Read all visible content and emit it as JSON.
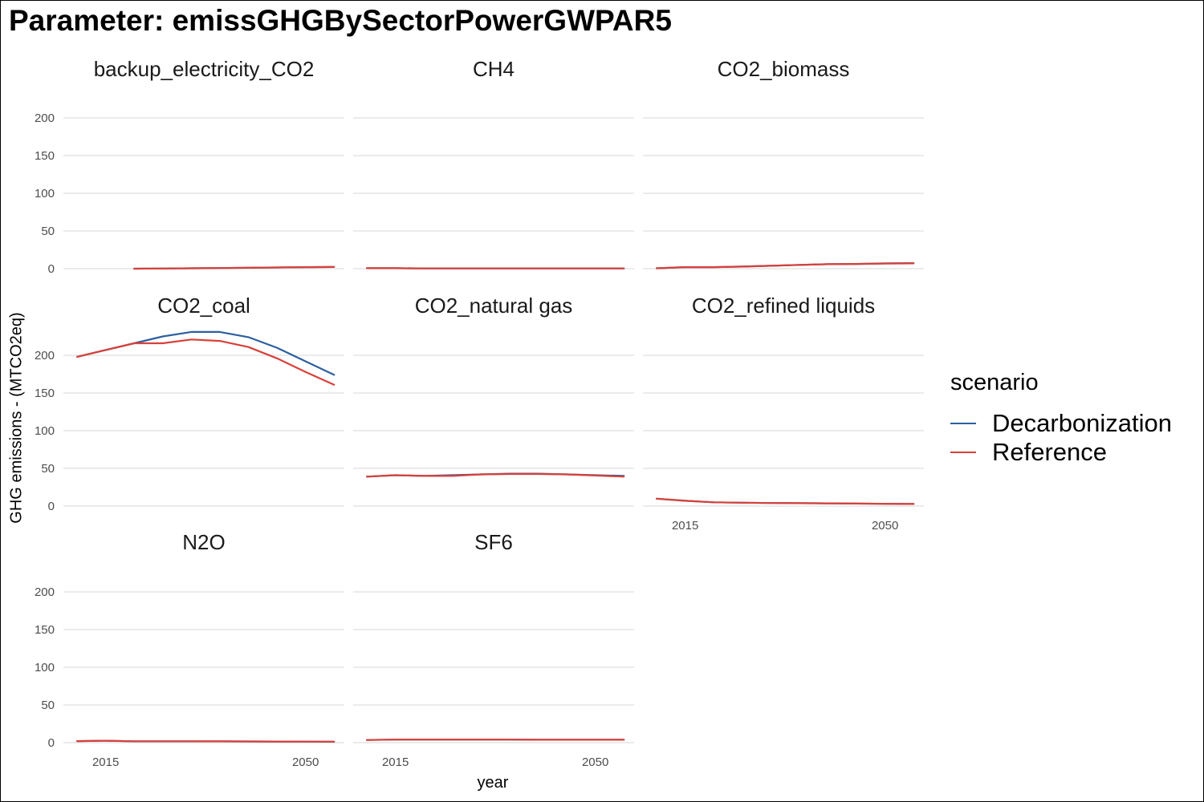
{
  "title": "Parameter: emissGHGBySectorPowerGWPAR5",
  "ylabel": "GHG emissions - (MTCO2eq)",
  "xlabel": "year",
  "legend": {
    "title": "scenario",
    "items": [
      {
        "label": "Decarbonization",
        "color": "#2c5f9e"
      },
      {
        "label": "Reference",
        "color": "#d9403a"
      }
    ]
  },
  "chart_data": {
    "type": "line",
    "facets": [
      "backup_electricity_CO2",
      "CH4",
      "CO2_biomass",
      "CO2_coal",
      "CO2_natural gas",
      "CO2_refined liquids",
      "N2O",
      "SF6"
    ],
    "x": [
      2010,
      2015,
      2020,
      2025,
      2030,
      2035,
      2040,
      2045,
      2050,
      2055
    ],
    "ylim": [
      0,
      210
    ],
    "y_ticks": [
      0,
      50,
      100,
      150,
      200
    ],
    "x_ticks": [
      2015,
      2050
    ],
    "y_tick_labels": [
      "0",
      "50",
      "100",
      "150",
      "200"
    ],
    "x_tick_labels": [
      "2015",
      "2050"
    ],
    "grid": true,
    "legend_position": "right",
    "series": [
      {
        "facet": "backup_electricity_CO2",
        "name": "Decarbonization",
        "values": [
          null,
          null,
          0,
          0.2,
          0.5,
          0.8,
          1.2,
          1.6,
          2.0,
          2.2
        ]
      },
      {
        "facet": "backup_electricity_CO2",
        "name": "Reference",
        "values": [
          null,
          null,
          0,
          0.2,
          0.5,
          0.8,
          1.2,
          1.6,
          2.0,
          2.2
        ]
      },
      {
        "facet": "CH4",
        "name": "Decarbonization",
        "values": [
          0.6,
          0.6,
          0.3,
          0.3,
          0.3,
          0.3,
          0.3,
          0.3,
          0.3,
          0.3
        ]
      },
      {
        "facet": "CH4",
        "name": "Reference",
        "values": [
          0.6,
          0.6,
          0.3,
          0.3,
          0.3,
          0.3,
          0.3,
          0.3,
          0.3,
          0.3
        ]
      },
      {
        "facet": "CO2_biomass",
        "name": "Decarbonization",
        "values": [
          0.5,
          2.0,
          2.0,
          2.8,
          3.8,
          5.0,
          6.0,
          6.3,
          7.0,
          7.3
        ]
      },
      {
        "facet": "CO2_biomass",
        "name": "Reference",
        "values": [
          0.5,
          2.0,
          2.0,
          2.8,
          3.8,
          5.0,
          6.0,
          6.3,
          6.8,
          7.0
        ]
      },
      {
        "facet": "CO2_coal",
        "name": "Decarbonization",
        "values": [
          198,
          207,
          216,
          225,
          231,
          231,
          224,
          210,
          192,
          174
        ]
      },
      {
        "facet": "CO2_coal",
        "name": "Reference",
        "values": [
          198,
          207,
          216,
          216,
          221,
          219,
          211,
          196,
          178,
          161
        ]
      },
      {
        "facet": "CO2_natural gas",
        "name": "Decarbonization",
        "values": [
          39,
          41,
          40,
          41,
          42,
          43,
          43,
          42,
          41,
          40
        ]
      },
      {
        "facet": "CO2_natural gas",
        "name": "Reference",
        "values": [
          39,
          41,
          40,
          40,
          42,
          42.5,
          42.5,
          42,
          40.5,
          39
        ]
      },
      {
        "facet": "CO2_refined liquids",
        "name": "Decarbonization",
        "values": [
          9.8,
          7.0,
          5.0,
          4.5,
          4.0,
          3.8,
          3.6,
          3.3,
          3.0,
          2.8
        ]
      },
      {
        "facet": "CO2_refined liquids",
        "name": "Reference",
        "values": [
          9.8,
          7.0,
          5.0,
          4.5,
          4.0,
          3.8,
          3.6,
          3.3,
          3.0,
          2.8
        ]
      },
      {
        "facet": "N2O",
        "name": "Decarbonization",
        "values": [
          2.0,
          2.5,
          1.8,
          1.8,
          1.8,
          1.7,
          1.6,
          1.5,
          1.4,
          1.3
        ]
      },
      {
        "facet": "N2O",
        "name": "Reference",
        "values": [
          2.0,
          2.5,
          1.8,
          1.8,
          1.8,
          1.7,
          1.6,
          1.5,
          1.4,
          1.3
        ]
      },
      {
        "facet": "SF6",
        "name": "Decarbonization",
        "values": [
          3.5,
          4.0,
          4.0,
          4.0,
          4.0,
          4.0,
          3.8,
          3.8,
          3.8,
          3.8
        ]
      },
      {
        "facet": "SF6",
        "name": "Reference",
        "values": [
          3.5,
          4.0,
          4.0,
          4.0,
          4.0,
          4.0,
          3.8,
          3.8,
          3.8,
          3.8
        ]
      }
    ]
  }
}
